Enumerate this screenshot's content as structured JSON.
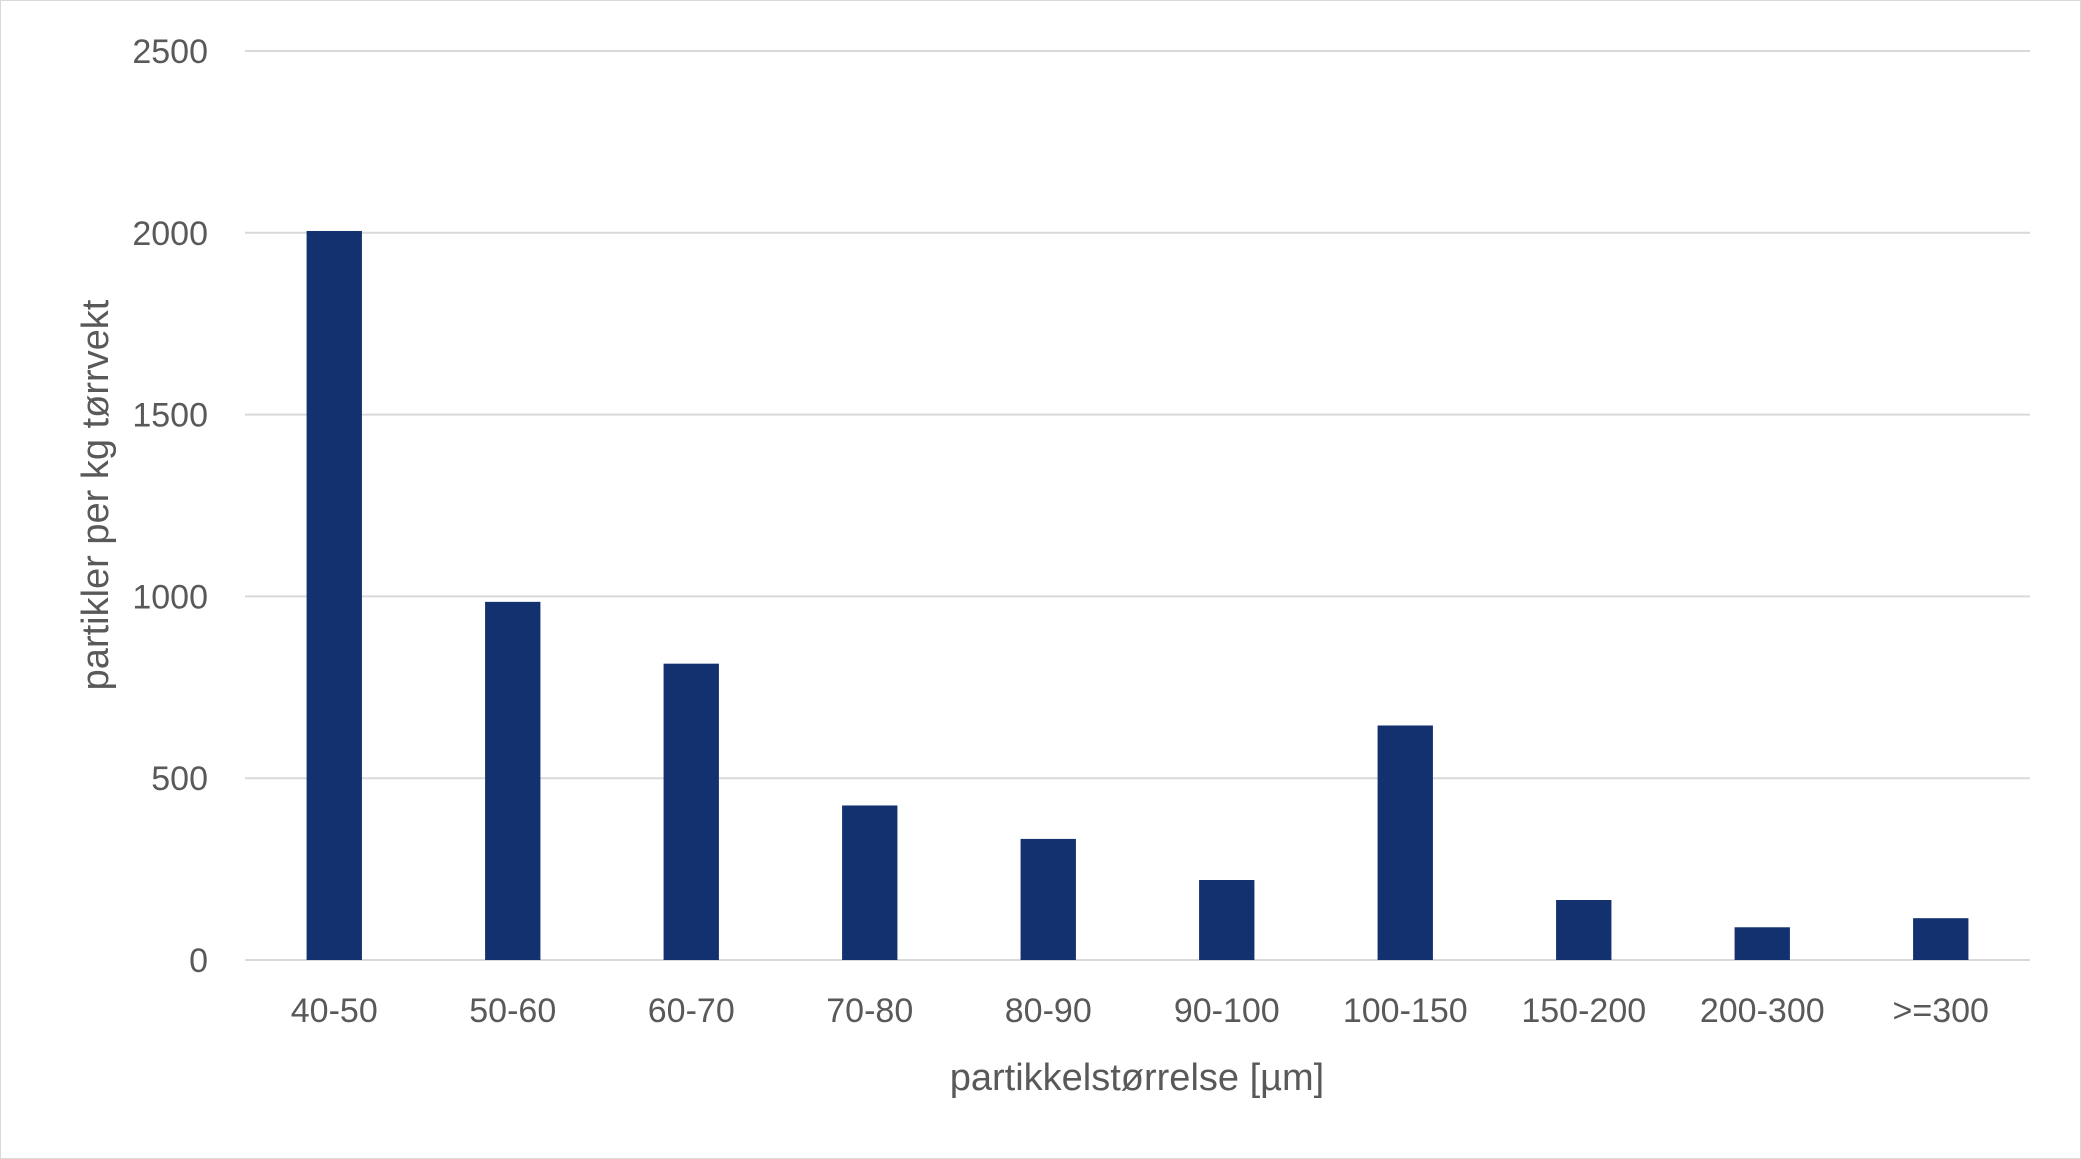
{
  "chart_data": {
    "type": "bar",
    "title": "",
    "xlabel": "partikkelstørrelse [µm]",
    "ylabel": "partikler per kg tørrvekt",
    "categories": [
      "40-50",
      "50-60",
      "60-70",
      "70-80",
      "80-90",
      "90-100",
      "100-150",
      "150-200",
      "200-300",
      ">=300"
    ],
    "series": [
      {
        "values": [
          2005,
          985,
          815,
          425,
          333,
          220,
          645,
          165,
          90,
          115
        ]
      }
    ],
    "ylim": [
      0,
      2500
    ],
    "yticks": [
      "0",
      "500",
      "1000",
      "1500",
      "2000",
      "2500"
    ],
    "grid": true,
    "legend": "none",
    "colors": {
      "bar": "#14316f",
      "grid": "#d9d9d9",
      "text": "#595959"
    }
  }
}
